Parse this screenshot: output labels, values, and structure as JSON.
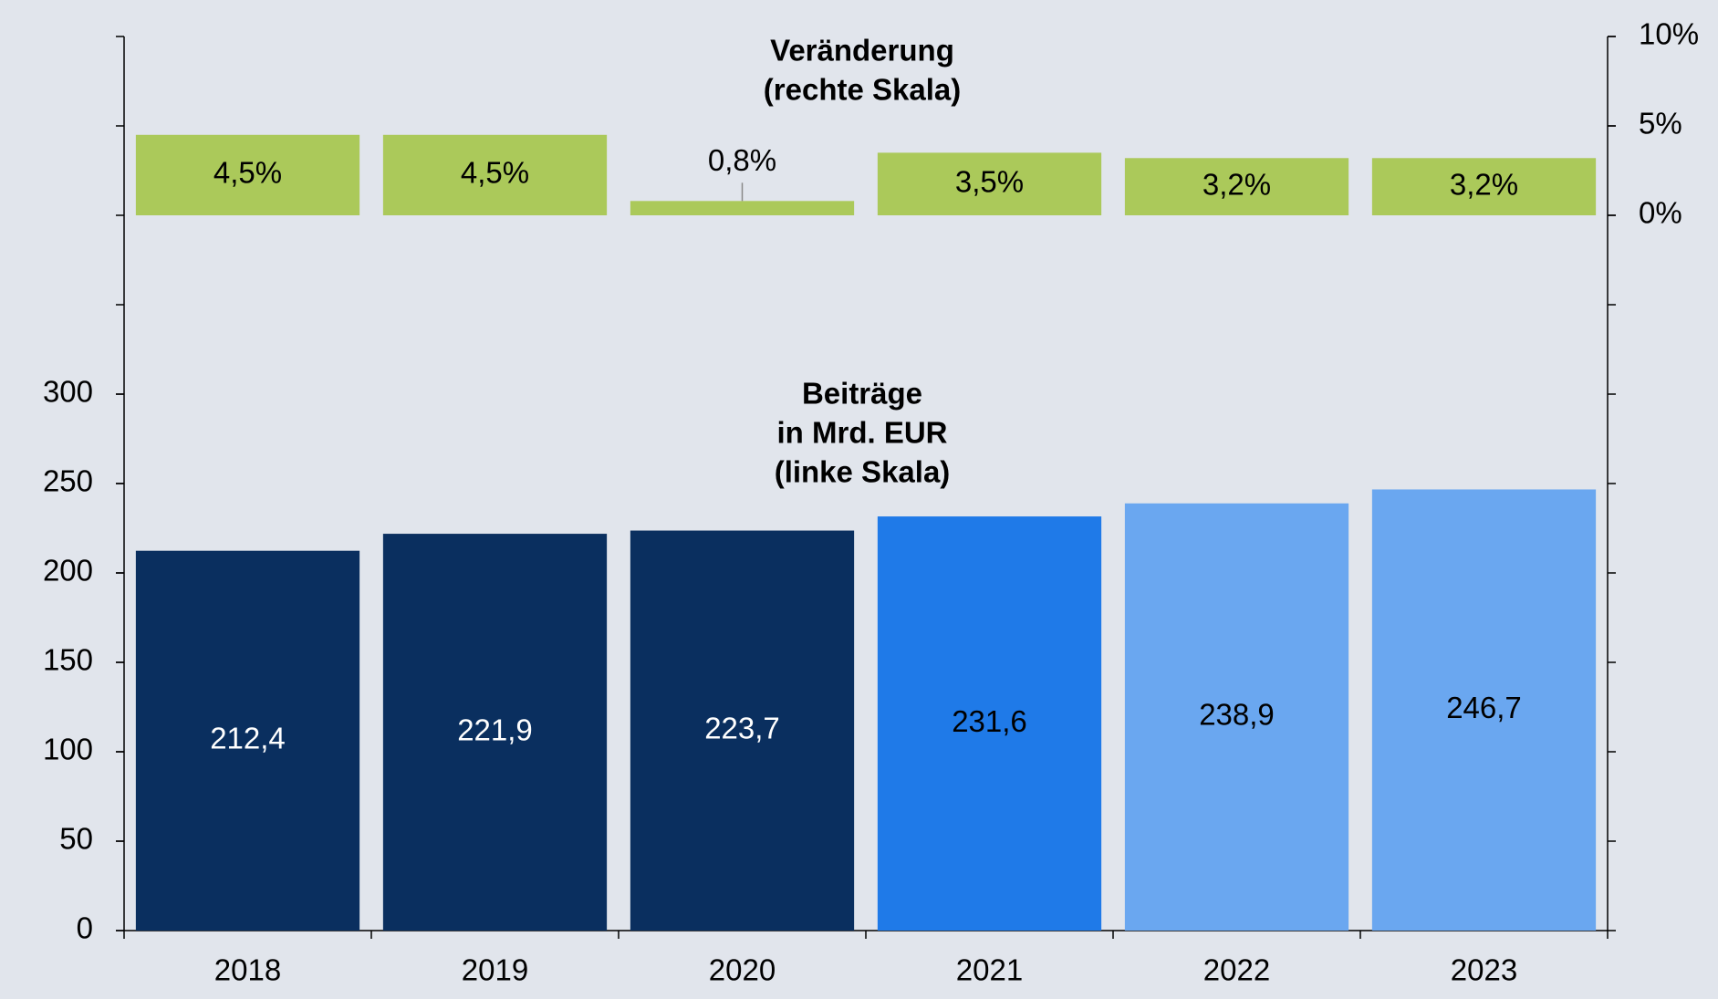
{
  "chart_data": {
    "type": "bar",
    "categories": [
      "2018",
      "2019",
      "2020",
      "2021",
      "2022",
      "2023"
    ],
    "series": [
      {
        "values": [
          212.4,
          221.9,
          223.7,
          231.6,
          238.9,
          246.7
        ],
        "value_labels": [
          "212,4",
          "221,9",
          "223,7",
          "231,6",
          "238,9",
          "246,7"
        ],
        "colors": [
          "#0a2f5f",
          "#0a2f5f",
          "#0a2f5f",
          "#1f7ae8",
          "#6aa7f0",
          "#6aa7f0"
        ],
        "label_colors": [
          "#ffffff",
          "#ffffff",
          "#ffffff",
          "#000000",
          "#000000",
          "#000000"
        ]
      },
      {
        "axis": "y2",
        "color": "#abc95a",
        "values": [
          4.5,
          4.5,
          0.8,
          3.5,
          3.2,
          3.2
        ],
        "value_labels": [
          "4,5%",
          "4,5%",
          "0,8%",
          "3,5%",
          "3,2%",
          "3,2%"
        ]
      }
    ],
    "annotations": [
      {
        "lines": [
          "Veränderung",
          "(rechte Skala)"
        ]
      },
      {
        "lines": [
          "Beiträge",
          "in Mrd. EUR",
          "(linke Skala)"
        ]
      }
    ],
    "ylim": [
      0,
      500
    ],
    "yticks": [
      0,
      50,
      100,
      150,
      200,
      250,
      300
    ],
    "y2lim": [
      -40,
      10
    ],
    "y2ticks": [
      {
        "value": 0,
        "label": "0%"
      },
      {
        "value": 5,
        "label": "5%"
      },
      {
        "value": 10,
        "label": "10%"
      }
    ]
  }
}
